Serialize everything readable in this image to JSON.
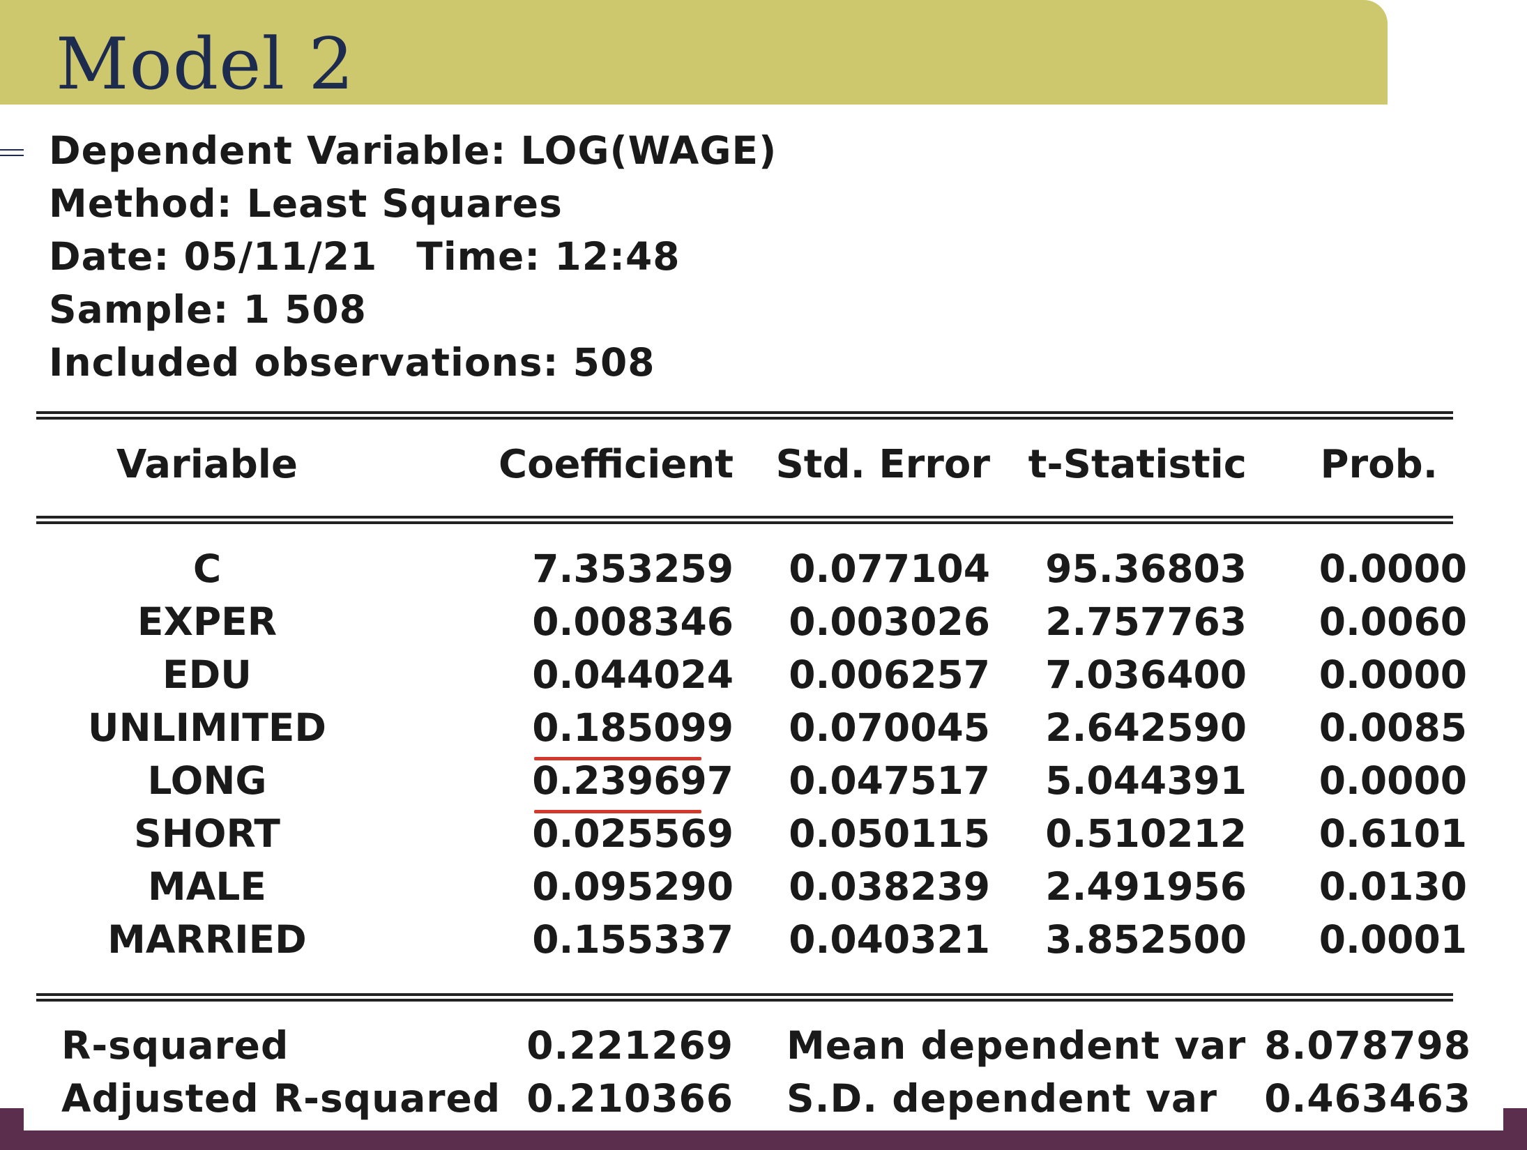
{
  "slide": {
    "title": "Model 2",
    "colors": {
      "banner": "#cdc76d",
      "title": "#1d2b4e",
      "footer_bar": "#5a2e4c",
      "underline_highlight": "#d3382b"
    }
  },
  "output": {
    "dependent_variable": "Dependent Variable: LOG(WAGE)",
    "method": "Method: Least Squares",
    "date": "Date: 05/11/21",
    "time": "Time: 12:48",
    "sample": "Sample: 1 508",
    "included_observations": "Included observations: 508",
    "columns": [
      "Variable",
      "Coefficient",
      "Std. Error",
      "t-Statistic",
      "Prob."
    ],
    "rows": [
      {
        "variable": "C",
        "coefficient": "7.353259",
        "std_error": "0.077104",
        "t_statistic": "95.36803",
        "prob": "0.0000"
      },
      {
        "variable": "EXPER",
        "coefficient": "0.008346",
        "std_error": "0.003026",
        "t_statistic": "2.757763",
        "prob": "0.0060"
      },
      {
        "variable": "EDU",
        "coefficient": "0.044024",
        "std_error": "0.006257",
        "t_statistic": "7.036400",
        "prob": "0.0000"
      },
      {
        "variable": "UNLIMITED",
        "coefficient": "0.185099",
        "std_error": "0.070045",
        "t_statistic": "2.642590",
        "prob": "0.0085"
      },
      {
        "variable": "LONG",
        "coefficient": "0.239697",
        "std_error": "0.047517",
        "t_statistic": "5.044391",
        "prob": "0.0000"
      },
      {
        "variable": "SHORT",
        "coefficient": "0.025569",
        "std_error": "0.050115",
        "t_statistic": "0.510212",
        "prob": "0.6101"
      },
      {
        "variable": "MALE",
        "coefficient": "0.095290",
        "std_error": "0.038239",
        "t_statistic": "2.491956",
        "prob": "0.0130"
      },
      {
        "variable": "MARRIED",
        "coefficient": "0.155337",
        "std_error": "0.040321",
        "t_statistic": "3.852500",
        "prob": "0.0001"
      }
    ],
    "underlined_coefficients": [
      "UNLIMITED",
      "LONG"
    ],
    "stats": [
      {
        "label": "R-squared",
        "value": "0.221269",
        "label2": "Mean dependent var",
        "value2": "8.078798"
      },
      {
        "label": "Adjusted R-squared",
        "value": "0.210366",
        "label2": "S.D. dependent var",
        "value2": "0.463463"
      }
    ]
  }
}
